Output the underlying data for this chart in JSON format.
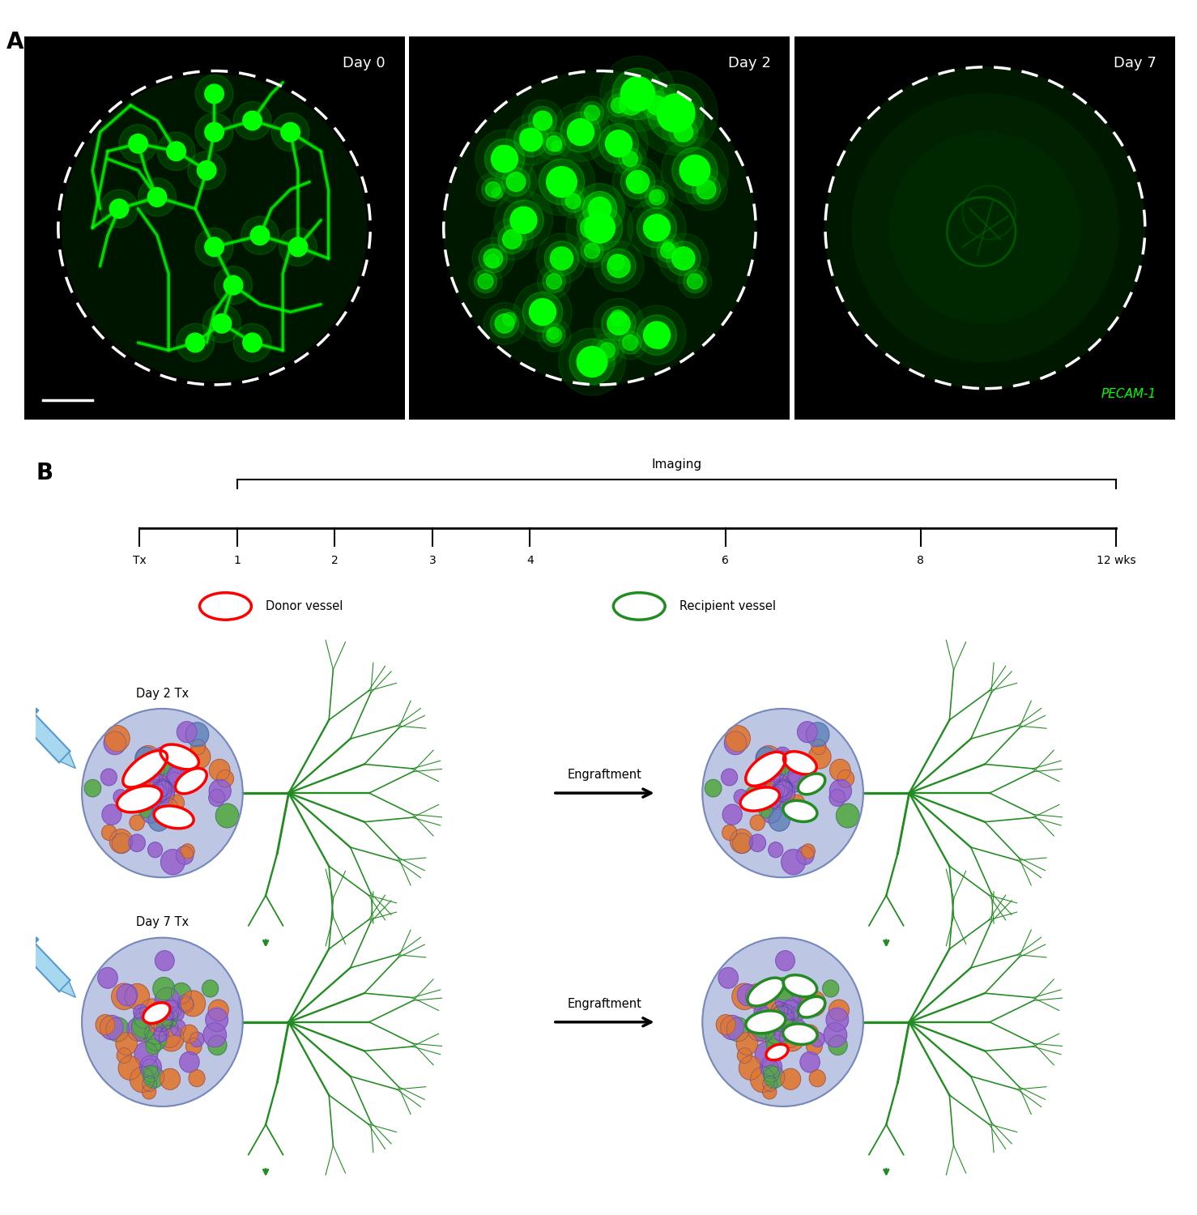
{
  "panel_A_labels": [
    "Day 0",
    "Day 2",
    "Day 7"
  ],
  "panel_B_timeline_label": "Imaging",
  "panel_B_tx_label": "Tx",
  "panel_B_time_points": [
    "1",
    "2",
    "3",
    "4",
    "6",
    "8",
    "12 wks"
  ],
  "panel_B_legend_donor": "Donor vessel",
  "panel_B_legend_recipient": "Recipient vessel",
  "panel_B_day2_label": "Day 2 Tx",
  "panel_B_day7_label": "Day 7 Tx",
  "panel_B_engraftment": "Engraftment",
  "pecam_label": "PECAM-1",
  "label_A": "A",
  "label_B": "B",
  "green_bright": "#00FF00",
  "green_med": "#00CC00",
  "green_dim": "#003300",
  "green_dark": "#001a00"
}
